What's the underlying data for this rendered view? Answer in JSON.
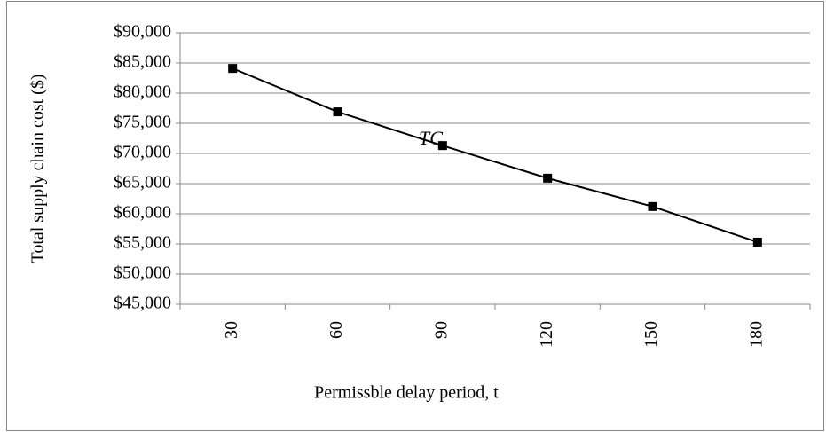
{
  "chart_data": {
    "type": "line",
    "x_label": "Permissble delay period, t",
    "y_label": "Total supply chain cost  ($)",
    "annotation": "TC",
    "categories": [
      "30",
      "60",
      "90",
      "120",
      "150",
      "180"
    ],
    "series": [
      {
        "name": "TC",
        "color": "#000000",
        "values": [
          84100,
          76900,
          71300,
          65900,
          61200,
          55300
        ]
      }
    ],
    "ylim": [
      45000,
      90000
    ],
    "yticks": [
      {
        "value": 45000,
        "label": "$45,000"
      },
      {
        "value": 50000,
        "label": "$50,000"
      },
      {
        "value": 55000,
        "label": "$55,000"
      },
      {
        "value": 60000,
        "label": "$60,000"
      },
      {
        "value": 65000,
        "label": "$65,000"
      },
      {
        "value": 70000,
        "label": "$70,000"
      },
      {
        "value": 75000,
        "label": "$75,000"
      },
      {
        "value": 80000,
        "label": "$80,000"
      },
      {
        "value": 85000,
        "label": "$85,000"
      },
      {
        "value": 90000,
        "label": "$90,000"
      }
    ],
    "grid": true,
    "legend": false
  }
}
